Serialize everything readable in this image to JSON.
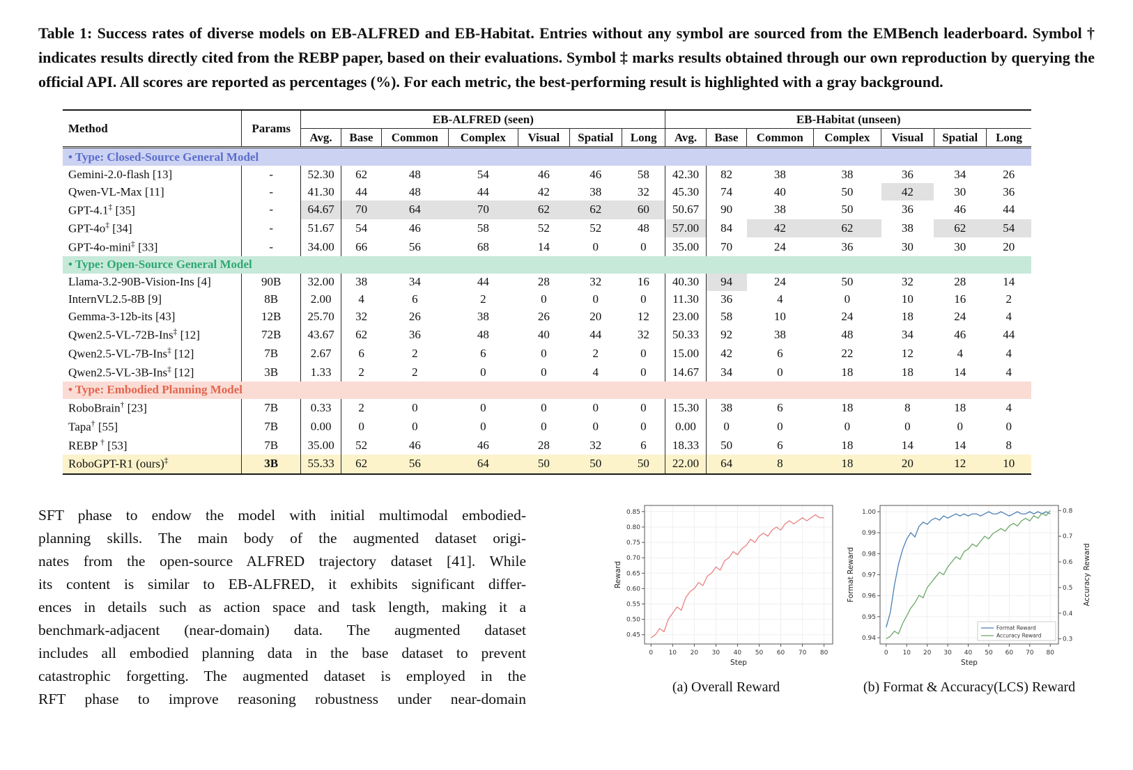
{
  "colors": {
    "best_cell_bg": "#e1e1e1",
    "ours_row_bg": "#fcf3cb",
    "closed_source_bg": "#ccd2f1",
    "closed_source_text": "#5b6ece",
    "open_source_bg": "#c7e9d9",
    "open_source_text": "#2fa874",
    "embodied_bg": "#fadcd5",
    "embodied_text": "#e3654d"
  },
  "caption": {
    "text": "Table 1: Success rates of diverse models on EB-ALFRED and EB-Habitat. Entries without any symbol are sourced from the EMBench leaderboard. Symbol † indicates results directly cited from the REBP paper, based on their evaluations. Symbol ‡ marks results obtained through our own reproduction by querying the official API. All scores are reported as percentages (%). For each metric, the best-performing result is highlighted with a gray background."
  },
  "table": {
    "col_method": "Method",
    "col_params": "Params",
    "group_headers": [
      "EB-ALFRED (seen)",
      "EB-Habitat (unseen)"
    ],
    "subcols": [
      "Avg.",
      "Base",
      "Common",
      "Complex",
      "Visual",
      "Spatial",
      "Long"
    ],
    "sections": [
      {
        "label": "• Type: Closed-Source General Model",
        "bg": "#ccd2f1",
        "color": "#5b6ece",
        "rows": [
          {
            "name": "Gemini-2.0-flash",
            "mark": "",
            "ref": "[13]",
            "params": "-",
            "values": [
              "52.30",
              "62",
              "48",
              "54",
              "46",
              "46",
              "58",
              "42.30",
              "82",
              "38",
              "38",
              "36",
              "34",
              "26"
            ],
            "gray": []
          },
          {
            "name": "Qwen-VL-Max",
            "mark": "",
            "ref": "[11]",
            "params": "-",
            "values": [
              "41.30",
              "44",
              "48",
              "44",
              "42",
              "38",
              "32",
              "45.30",
              "74",
              "40",
              "50",
              "42",
              "30",
              "36"
            ],
            "gray": [
              11
            ]
          },
          {
            "name": "GPT-4.1",
            "mark": "‡",
            "ref": "[35]",
            "params": "-",
            "values": [
              "64.67",
              "70",
              "64",
              "70",
              "62",
              "62",
              "60",
              "50.67",
              "90",
              "38",
              "50",
              "36",
              "46",
              "44"
            ],
            "gray": [
              0,
              1,
              2,
              3,
              4,
              5,
              6
            ]
          },
          {
            "name": "GPT-4o",
            "mark": "‡",
            "ref": "[34]",
            "params": "-",
            "values": [
              "51.67",
              "54",
              "46",
              "58",
              "52",
              "52",
              "48",
              "57.00",
              "84",
              "42",
              "62",
              "38",
              "62",
              "54"
            ],
            "gray": [
              7,
              9,
              10,
              12,
              13
            ]
          },
          {
            "name": "GPT-4o-mini",
            "mark": "‡",
            "ref": "[33]",
            "params": "-",
            "values": [
              "34.00",
              "66",
              "56",
              "68",
              "14",
              "0",
              "0",
              "35.00",
              "70",
              "24",
              "36",
              "30",
              "30",
              "20"
            ],
            "gray": []
          }
        ]
      },
      {
        "label": "• Type: Open-Source General Model",
        "bg": "#c7e9d9",
        "color": "#2fa874",
        "rows": [
          {
            "name": "Llama-3.2-90B-Vision-Ins",
            "mark": "",
            "ref": "[4]",
            "params": "90B",
            "values": [
              "32.00",
              "38",
              "34",
              "44",
              "28",
              "32",
              "16",
              "40.30",
              "94",
              "24",
              "50",
              "32",
              "28",
              "14"
            ],
            "gray": [
              8
            ]
          },
          {
            "name": "InternVL2.5-8B",
            "mark": "",
            "ref": "[9]",
            "params": "8B",
            "values": [
              "2.00",
              "4",
              "6",
              "2",
              "0",
              "0",
              "0",
              "11.30",
              "36",
              "4",
              "0",
              "10",
              "16",
              "2"
            ],
            "gray": []
          },
          {
            "name": "Gemma-3-12b-its",
            "mark": "",
            "ref": "[43]",
            "params": "12B",
            "values": [
              "25.70",
              "32",
              "26",
              "38",
              "26",
              "20",
              "12",
              "23.00",
              "58",
              "10",
              "24",
              "18",
              "24",
              "4"
            ],
            "gray": []
          },
          {
            "name": "Qwen2.5-VL-72B-Ins",
            "mark": "‡",
            "ref": "[12]",
            "params": "72B",
            "values": [
              "43.67",
              "62",
              "36",
              "48",
              "40",
              "44",
              "32",
              "50.33",
              "92",
              "38",
              "48",
              "34",
              "46",
              "44"
            ],
            "gray": []
          },
          {
            "name": "Qwen2.5-VL-7B-Ins",
            "mark": "‡",
            "ref": "[12]",
            "params": "7B",
            "values": [
              "2.67",
              "6",
              "2",
              "6",
              "0",
              "2",
              "0",
              "15.00",
              "42",
              "6",
              "22",
              "12",
              "4",
              "4"
            ],
            "gray": []
          },
          {
            "name": "Qwen2.5-VL-3B-Ins",
            "mark": "‡",
            "ref": "[12]",
            "params": "3B",
            "values": [
              "1.33",
              "2",
              "2",
              "0",
              "0",
              "4",
              "0",
              "14.67",
              "34",
              "0",
              "18",
              "18",
              "14",
              "4"
            ],
            "gray": []
          }
        ]
      },
      {
        "label": "• Type: Embodied Planning Model",
        "bg": "#fadcd5",
        "color": "#e3654d",
        "rows": [
          {
            "name": "RoboBrain",
            "mark": "†",
            "ref": "[23]",
            "params": "7B",
            "values": [
              "0.33",
              "2",
              "0",
              "0",
              "0",
              "0",
              "0",
              "15.30",
              "38",
              "6",
              "18",
              "8",
              "18",
              "4"
            ],
            "gray": []
          },
          {
            "name": "Tapa",
            "mark": "†",
            "ref": "[55]",
            "params": "7B",
            "values": [
              "0.00",
              "0",
              "0",
              "0",
              "0",
              "0",
              "0",
              "0.00",
              "0",
              "0",
              "0",
              "0",
              "0",
              "0"
            ],
            "gray": []
          },
          {
            "name": "REBP ",
            "mark": "†",
            "ref": "[53]",
            "params": "7B",
            "values": [
              "35.00",
              "52",
              "46",
              "46",
              "28",
              "32",
              "6",
              "18.33",
              "50",
              "6",
              "18",
              "14",
              "14",
              "8"
            ],
            "gray": []
          },
          {
            "name": "RoboGPT-R1 (ours)",
            "mark": "‡",
            "ref": "",
            "params": "3B",
            "values": [
              "55.33",
              "62",
              "56",
              "64",
              "50",
              "50",
              "50",
              "22.00",
              "64",
              "8",
              "18",
              "20",
              "12",
              "10"
            ],
            "gray": [],
            "highlight": true,
            "bold_params": true
          }
        ]
      }
    ]
  },
  "body_text": {
    "lines": [
      "SFT phase to endow the model with initial multimodal embodied-",
      "planning skills. The main body of the augmented dataset origi-",
      "nates from the open-source ALFRED trajectory dataset [41]. While",
      "its content is similar to EB-ALFRED, it exhibits significant differ-",
      "ences in details such as action space and task length, making it a",
      "benchmark-adjacent (near-domain) data. The augmented dataset",
      "includes all embodied planning data in the base dataset to prevent",
      "catastrophic forgetting. The augmented dataset is employed in the",
      "RFT phase to improve reasoning robustness under near-domain"
    ]
  },
  "figures": {
    "caption_a": "(a) Overall Reward",
    "caption_b": "(b) Format & Accuracy(LCS) Reward"
  },
  "chart_data": [
    {
      "type": "line",
      "title": "(a) Overall Reward",
      "xlabel": "Step",
      "ylabel": "Reward",
      "xlim": [
        -3,
        84
      ],
      "ylim": [
        0.42,
        0.87
      ],
      "xticks": [
        0,
        10,
        20,
        30,
        40,
        50,
        60,
        70,
        80
      ],
      "yticks": [
        0.45,
        0.5,
        0.55,
        0.6,
        0.65,
        0.7,
        0.75,
        0.8,
        0.85
      ],
      "yfmt": 2,
      "grid": true,
      "legend": null,
      "series": [
        {
          "name": "Overall Reward",
          "axis": "left",
          "color": "#e88282",
          "x": [
            0,
            2,
            4,
            6,
            8,
            10,
            12,
            14,
            16,
            18,
            20,
            22,
            24,
            26,
            28,
            30,
            32,
            34,
            36,
            38,
            40,
            42,
            44,
            46,
            48,
            50,
            52,
            54,
            56,
            58,
            60,
            62,
            64,
            66,
            68,
            70,
            72,
            74,
            76,
            78,
            80
          ],
          "y": [
            0.44,
            0.45,
            0.47,
            0.46,
            0.5,
            0.52,
            0.54,
            0.53,
            0.57,
            0.59,
            0.6,
            0.62,
            0.61,
            0.64,
            0.65,
            0.67,
            0.66,
            0.69,
            0.7,
            0.72,
            0.71,
            0.73,
            0.74,
            0.76,
            0.75,
            0.77,
            0.78,
            0.77,
            0.79,
            0.8,
            0.79,
            0.81,
            0.82,
            0.81,
            0.82,
            0.83,
            0.82,
            0.83,
            0.84,
            0.83,
            0.83
          ]
        }
      ]
    },
    {
      "type": "line",
      "title": "(b) Format & Accuracy(LCS) Reward",
      "xlabel": "Step",
      "ylabel": "Format Reward",
      "ylabel_right": "Accuracy Reward",
      "xlim": [
        -3,
        84
      ],
      "ylim": [
        0.937,
        1.003
      ],
      "ylim_right": [
        0.28,
        0.82
      ],
      "xticks": [
        0,
        10,
        20,
        30,
        40,
        50,
        60,
        70,
        80
      ],
      "yticks": [
        0.94,
        0.95,
        0.96,
        0.97,
        0.98,
        0.99,
        1.0
      ],
      "yticks_right": [
        0.3,
        0.4,
        0.5,
        0.6,
        0.7,
        0.8
      ],
      "yfmt": 2,
      "yfmt_right": 1,
      "grid": true,
      "legend": [
        "Format Reward",
        "Accuracy Reward"
      ],
      "legend_pos": "lower right",
      "series": [
        {
          "name": "Format Reward",
          "axis": "left",
          "color": "#4a7fb5",
          "x": [
            0,
            2,
            4,
            6,
            8,
            10,
            12,
            14,
            16,
            18,
            20,
            22,
            24,
            26,
            28,
            30,
            32,
            34,
            36,
            38,
            40,
            42,
            44,
            46,
            48,
            50,
            52,
            54,
            56,
            58,
            60,
            62,
            64,
            66,
            68,
            70,
            72,
            74,
            76,
            78,
            80
          ],
          "y": [
            0.945,
            0.952,
            0.965,
            0.975,
            0.982,
            0.987,
            0.99,
            0.988,
            0.993,
            0.995,
            0.994,
            0.996,
            0.997,
            0.996,
            0.998,
            0.997,
            0.998,
            0.999,
            0.998,
            0.999,
            0.998,
            0.999,
            0.999,
            0.998,
            0.999,
            1.0,
            0.999,
            0.999,
            1.0,
            0.999,
            0.998,
            0.999,
            1.0,
            0.999,
            0.999,
            1.0,
            0.999,
            1.0,
            0.999,
            1.0,
            0.999
          ]
        },
        {
          "name": "Accuracy Reward",
          "axis": "right",
          "color": "#69a769",
          "x": [
            0,
            2,
            4,
            6,
            8,
            10,
            12,
            14,
            16,
            18,
            20,
            22,
            24,
            26,
            28,
            30,
            32,
            34,
            36,
            38,
            40,
            42,
            44,
            46,
            48,
            50,
            52,
            54,
            56,
            58,
            60,
            62,
            64,
            66,
            68,
            70,
            72,
            74,
            76,
            78,
            80
          ],
          "y": [
            0.3,
            0.31,
            0.33,
            0.32,
            0.36,
            0.39,
            0.42,
            0.44,
            0.47,
            0.46,
            0.5,
            0.52,
            0.54,
            0.56,
            0.55,
            0.58,
            0.6,
            0.62,
            0.61,
            0.64,
            0.65,
            0.67,
            0.66,
            0.68,
            0.7,
            0.69,
            0.71,
            0.72,
            0.73,
            0.72,
            0.74,
            0.75,
            0.74,
            0.76,
            0.77,
            0.76,
            0.78,
            0.77,
            0.79,
            0.78,
            0.8
          ]
        }
      ]
    }
  ]
}
